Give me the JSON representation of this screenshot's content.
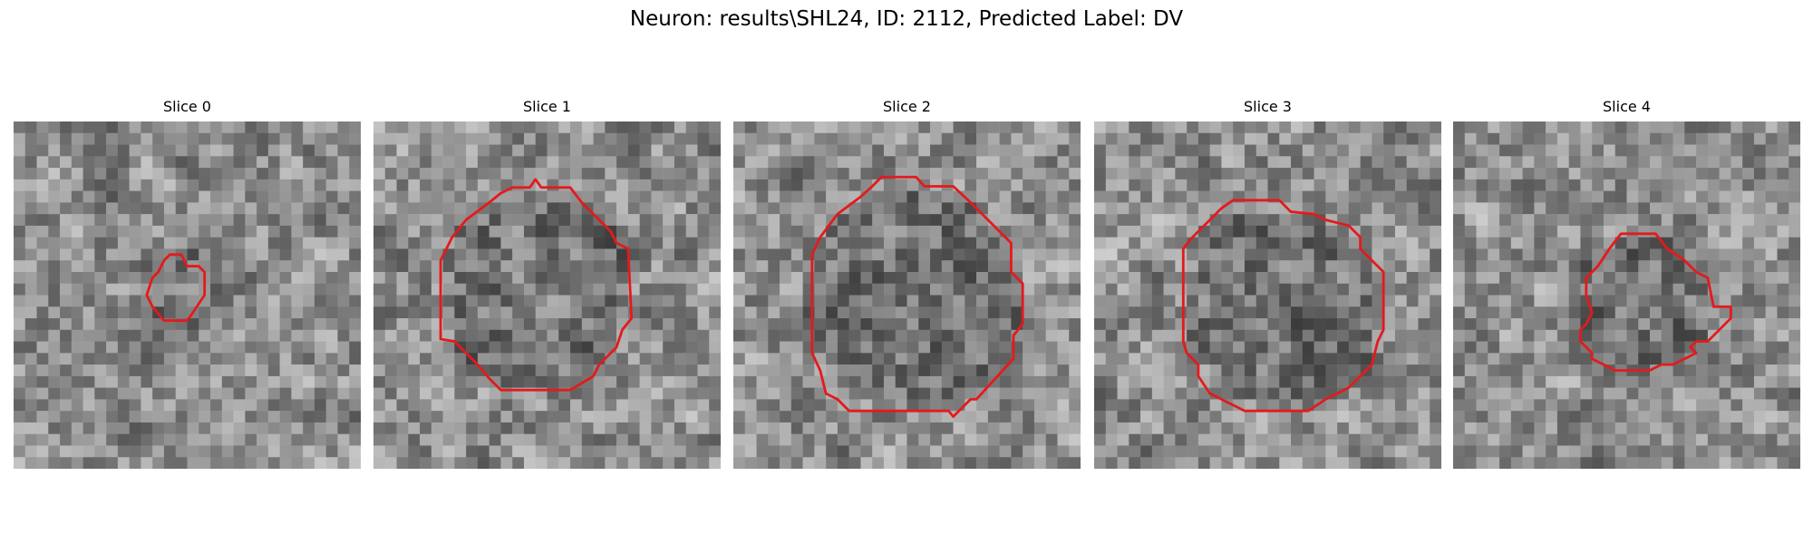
{
  "header": {
    "title": "Neuron: results\\SHL24, ID: 2112, Predicted Label: DV"
  },
  "panels": [
    {
      "title": "Slice 0"
    },
    {
      "title": "Slice 1"
    },
    {
      "title": "Slice 2"
    },
    {
      "title": "Slice 3"
    },
    {
      "title": "Slice 4"
    }
  ]
}
